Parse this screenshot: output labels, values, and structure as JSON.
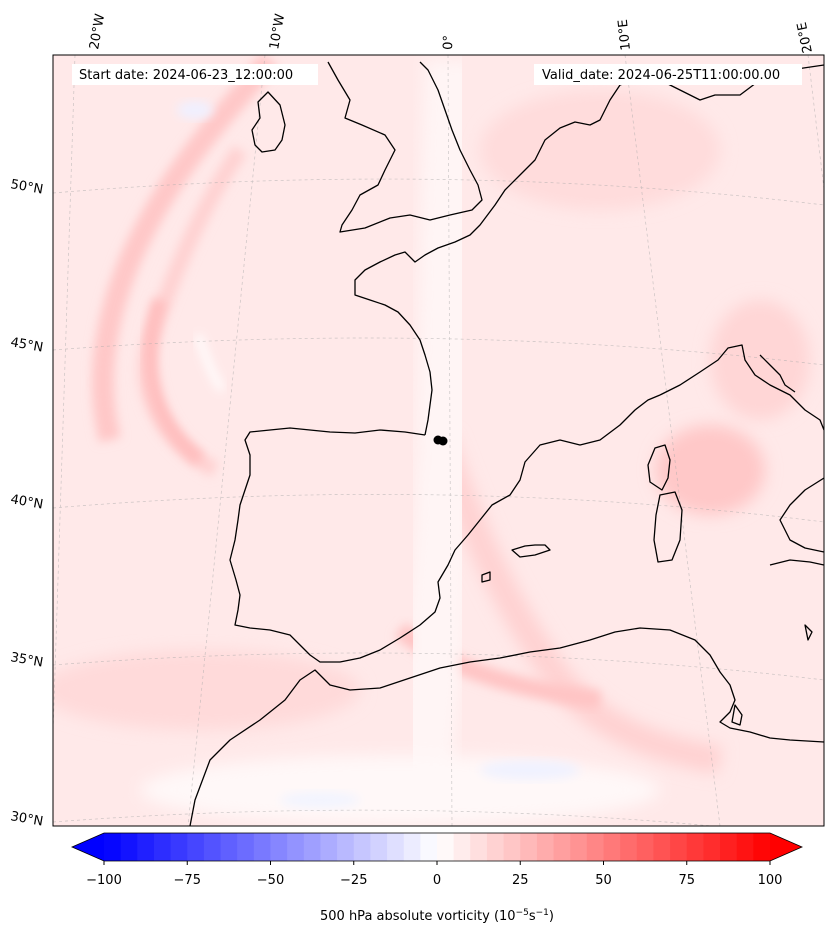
{
  "annotations": {
    "start": "Start date: 2024-06-23_12:00:00",
    "valid": "Valid_date: 2024-06-25T11:00:00.00"
  },
  "longitude_labels": [
    "20°W",
    "10°W",
    "0°",
    "10°E",
    "20°E"
  ],
  "latitude_labels": [
    "50°N",
    "45°N",
    "40°N",
    "35°N",
    "30°N"
  ],
  "colorbar": {
    "ticks": [
      "−100",
      "−75",
      "−50",
      "−25",
      "0",
      "25",
      "50",
      "75",
      "100"
    ],
    "min": -100,
    "max": 100,
    "step": 5,
    "colormap": "bwr",
    "extend": "both",
    "label_main": "500 hPa absolute vorticity (10",
    "label_exp1": "−5",
    "label_mid": "s",
    "label_exp2": "−1",
    "label_end": ")"
  },
  "colors": {
    "background_field": "#ffe8e8",
    "coast": "#000000",
    "grid": "#999999"
  }
}
